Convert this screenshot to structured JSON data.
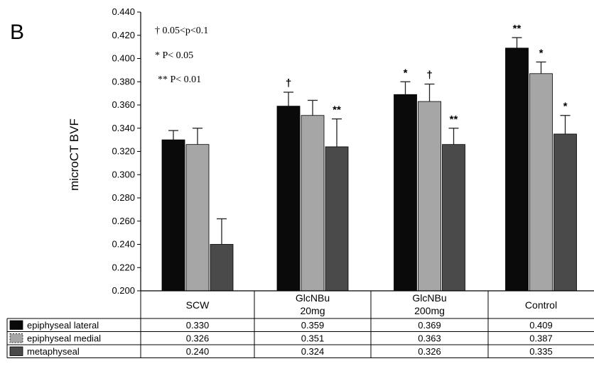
{
  "panel_label": "B",
  "significance_legend": [
    "† 0.05<p<0.1",
    "* P< 0.05",
    "** P< 0.01"
  ],
  "colors": {
    "epiphyseal_lateral": "#0a0a0a",
    "epiphyseal_medial": "#a6a6a6",
    "metaphyseal": "#4a4a4a"
  },
  "chart_data": {
    "type": "bar",
    "ylabel": "microCT BVF",
    "ylim": [
      0.2,
      0.44
    ],
    "yticks": [
      "0.200",
      "0.220",
      "0.240",
      "0.260",
      "0.280",
      "0.300",
      "0.320",
      "0.340",
      "0.360",
      "0.380",
      "0.400",
      "0.420",
      "0.440"
    ],
    "categories": [
      {
        "line1": "SCW",
        "line2": ""
      },
      {
        "line1": "GlcNBu",
        "line2": "20mg"
      },
      {
        "line1": "GlcNBu",
        "line2": "200mg"
      },
      {
        "line1": "Control",
        "line2": ""
      }
    ],
    "series": [
      {
        "name": "epiphyseal lateral",
        "color_key": "epiphyseal_lateral",
        "values": [
          0.33,
          0.359,
          0.369,
          0.409
        ],
        "errors": [
          0.008,
          0.012,
          0.011,
          0.009
        ],
        "marks": [
          "",
          "†",
          "*",
          "**"
        ],
        "table_values": [
          "0.330",
          "0.359",
          "0.369",
          "0.409"
        ]
      },
      {
        "name": "epiphyseal medial",
        "color_key": "epiphyseal_medial",
        "values": [
          0.326,
          0.351,
          0.363,
          0.387
        ],
        "errors": [
          0.014,
          0.013,
          0.015,
          0.01
        ],
        "marks": [
          "",
          "",
          "†",
          "*"
        ],
        "table_values": [
          "0.326",
          "0.351",
          "0.363",
          "0.387"
        ]
      },
      {
        "name": "metaphyseal",
        "color_key": "metaphyseal",
        "values": [
          0.24,
          0.324,
          0.326,
          0.335
        ],
        "errors": [
          0.022,
          0.024,
          0.014,
          0.016
        ],
        "marks": [
          "",
          "**",
          "**",
          "*"
        ],
        "table_values": [
          "0.240",
          "0.324",
          "0.326",
          "0.335"
        ]
      }
    ]
  }
}
